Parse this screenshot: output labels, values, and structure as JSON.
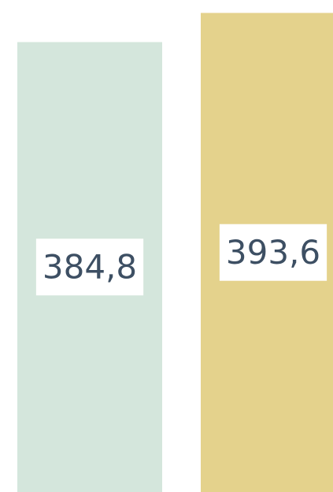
{
  "chart_data": {
    "type": "bar",
    "categories": [
      null,
      null
    ],
    "values": [
      384.8,
      393.6
    ],
    "value_labels": [
      "384,8",
      "393,6"
    ],
    "colors": [
      "#d4e6dc",
      "#e4d28c"
    ],
    "ylim": [
      249,
      397.5
    ]
  }
}
